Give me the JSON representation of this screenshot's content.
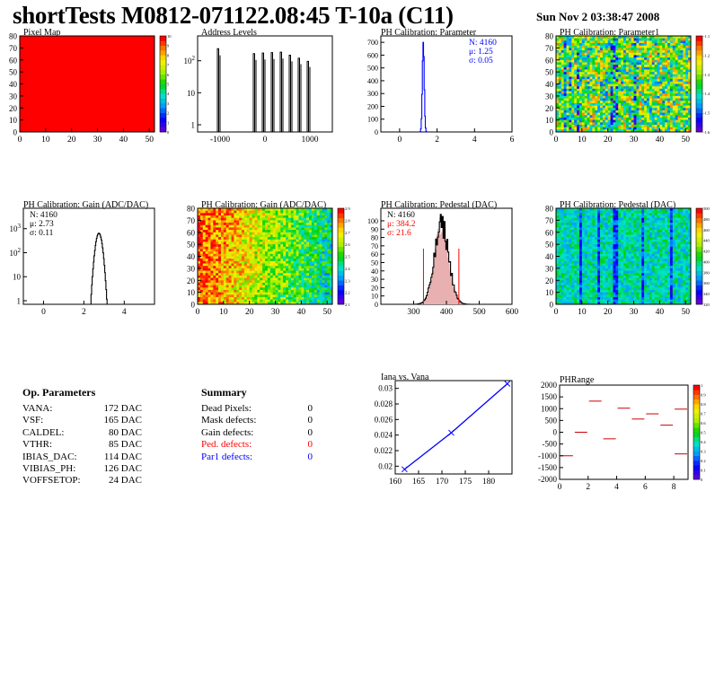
{
  "header": {
    "title": "shortTests M0812-071122.08:45 T-10a (C11)",
    "date": "Sun Nov  2 03:38:47 2008"
  },
  "colors": {
    "frame": "#000000",
    "hist_blue": "#0000ff",
    "hist_red": "#ff0000",
    "ped_fill": "#d08080",
    "axis": "#000000"
  },
  "chart_data": [
    {
      "id": "pixel-map",
      "type": "heatmap",
      "title": "Pixel Map",
      "xlim": [
        0,
        52
      ],
      "ylim": [
        0,
        80
      ],
      "xticks": [
        "0",
        "10",
        "20",
        "30",
        "40",
        "50"
      ],
      "yticks": [
        "0",
        "10",
        "20",
        "30",
        "40",
        "50",
        "60",
        "70",
        "80"
      ],
      "palette": "rainbow",
      "zticks": [
        "0",
        "1",
        "2",
        "3",
        "4",
        "5",
        "6",
        "7",
        "8",
        "9",
        "10"
      ],
      "pattern": "uniform",
      "base": 10,
      "noise": 0,
      "colmod": []
    },
    {
      "id": "address-levels",
      "type": "bar",
      "title": "Address Levels",
      "yscale": "log",
      "xlim": [
        -1500,
        1500
      ],
      "xticks": [
        "-1000",
        "0",
        "1000"
      ],
      "yticks": [
        "1",
        "10",
        "10^2"
      ],
      "spikes": [
        {
          "x": -1000,
          "h": 400
        },
        {
          "x": -200,
          "h": 280
        },
        {
          "x": 0,
          "h": 290
        },
        {
          "x": 200,
          "h": 300
        },
        {
          "x": 400,
          "h": 310
        },
        {
          "x": 600,
          "h": 250
        },
        {
          "x": 800,
          "h": 200
        },
        {
          "x": 1000,
          "h": 160
        }
      ]
    },
    {
      "id": "ph-param",
      "type": "bar",
      "title": "PH Calibration: Parameter",
      "xlim": [
        -1,
        6
      ],
      "ylim": [
        0,
        750
      ],
      "xticks": [
        "0",
        "2",
        "4",
        "6"
      ],
      "yticks": [
        "0",
        "100",
        "200",
        "300",
        "400",
        "500",
        "600",
        "700"
      ],
      "hist": {
        "mean": 1.25,
        "sigma": 0.05,
        "peak": 700,
        "color": "#0000ff"
      },
      "stats": [
        "N: 4160",
        "μ: 1.25",
        "σ: 0.05"
      ],
      "stats_color": "#0000ff"
    },
    {
      "id": "ph-param1",
      "type": "heatmap",
      "title": "PH Calibration: Parameter1",
      "xlim": [
        0,
        52
      ],
      "ylim": [
        0,
        80
      ],
      "xticks": [
        "0",
        "10",
        "20",
        "30",
        "40",
        "50"
      ],
      "yticks": [
        "0",
        "10",
        "20",
        "30",
        "40",
        "50",
        "60",
        "70",
        "80"
      ],
      "palette": "rainbow",
      "zticks": [
        "-1.6",
        "-1.5",
        "-1.4",
        "-1.3",
        "-1.2",
        "-1.1"
      ],
      "pattern": "noise",
      "base": 0.55,
      "noise": 0.35,
      "colmod": [
        3,
        5,
        8,
        21,
        22,
        23,
        30
      ]
    },
    {
      "id": "ph-gain",
      "type": "bar",
      "title": "PH Calibration: Gain (ADC/DAC)",
      "yscale": "log",
      "xlim": [
        -1,
        5.5
      ],
      "xticks": [
        "0",
        "2",
        "4"
      ],
      "yticks": [
        "1",
        "10",
        "10^2",
        "10^3"
      ],
      "hist": {
        "mean": 2.73,
        "sigma": 0.11,
        "peak": 650,
        "color": "#000000"
      },
      "stats": [
        "N: 4160",
        "μ: 2.73",
        "σ: 0.11"
      ],
      "stats_color": "#000000"
    },
    {
      "id": "ph-gain-map",
      "type": "heatmap",
      "title": "PH Calibration: Gain (ADC/DAC)",
      "xlim": [
        0,
        52
      ],
      "ylim": [
        0,
        80
      ],
      "xticks": [
        "0",
        "10",
        "20",
        "30",
        "40",
        "50"
      ],
      "yticks": [
        "0",
        "10",
        "20",
        "30",
        "40",
        "50",
        "60",
        "70",
        "80"
      ],
      "palette": "rainbow",
      "zticks": [
        "2.1",
        "2.2",
        "2.3",
        "2.4",
        "2.5",
        "2.6",
        "2.7",
        "2.8",
        "2.9"
      ],
      "pattern": "gradient",
      "base": 0.8,
      "noise": 0.18,
      "colmod": []
    },
    {
      "id": "ph-ped",
      "type": "bar",
      "title": "PH Calibration: Pedestal (DAC)",
      "xlim": [
        200,
        600
      ],
      "ylim": [
        0,
        115
      ],
      "xticks": [
        "300",
        "400",
        "500",
        "600"
      ],
      "yticks": [
        "0",
        "10",
        "20",
        "30",
        "40",
        "50",
        "60",
        "70",
        "80",
        "90",
        "100"
      ],
      "hist": {
        "mean": 384.2,
        "sigma": 21.6,
        "peak": 95,
        "color": "#000000"
      },
      "cut_lines": [
        330,
        438
      ],
      "stats": [
        "N: 4160",
        "μ: 384.2",
        "σ: 21.6"
      ],
      "stats_color": "#ff0000"
    },
    {
      "id": "ph-ped-map",
      "type": "heatmap",
      "title": "PH Calibration: Pedestal (DAC)",
      "xlim": [
        0,
        52
      ],
      "ylim": [
        0,
        80
      ],
      "xticks": [
        "0",
        "10",
        "20",
        "30",
        "40",
        "50"
      ],
      "yticks": [
        "0",
        "10",
        "20",
        "30",
        "40",
        "50",
        "60",
        "70",
        "80"
      ],
      "palette": "rainbow",
      "zticks": [
        "320",
        "340",
        "360",
        "380",
        "400",
        "420",
        "440",
        "460",
        "480",
        "500"
      ],
      "pattern": "noise",
      "base": 0.38,
      "noise": 0.12,
      "colmod": [
        9,
        16,
        22,
        23,
        33,
        44
      ]
    },
    {
      "id": "iana-vana",
      "type": "line",
      "title": "Iana vs. Vana",
      "xlim": [
        160,
        185
      ],
      "ylim": [
        0.019,
        0.031
      ],
      "xticks": [
        "160",
        "165",
        "170",
        "175",
        "180"
      ],
      "yticks": [
        "0.02",
        "0.022",
        "0.024",
        "0.026",
        "0.028",
        "0.03"
      ],
      "x": [
        162,
        172,
        184
      ],
      "y": [
        0.0196,
        0.0243,
        0.0306
      ],
      "color": "#0000ff"
    },
    {
      "id": "ph-range",
      "type": "heatmap",
      "title": "PHRange",
      "xlim": [
        0,
        9
      ],
      "ylim": [
        -2000,
        2000
      ],
      "xticks": [
        "0",
        "2",
        "4",
        "6",
        "8"
      ],
      "yticks": [
        "-2000",
        "-1500",
        "-1000",
        "-500",
        "0",
        "500",
        "1000",
        "1500",
        "2000"
      ],
      "zticks": [
        "0",
        "0.1",
        "0.2",
        "0.3",
        "0.4",
        "0.5",
        "0.6",
        "0.7",
        "0.8",
        "0.9",
        "1"
      ],
      "segments": [
        {
          "x0": 0,
          "x1": 1,
          "y": -1000
        },
        {
          "x0": 1,
          "x1": 2,
          "y": 0
        },
        {
          "x0": 2,
          "x1": 3,
          "y": 1320
        },
        {
          "x0": 3,
          "x1": 4,
          "y": -280
        },
        {
          "x0": 4,
          "x1": 5,
          "y": 1020
        },
        {
          "x0": 5,
          "x1": 6,
          "y": 560
        },
        {
          "x0": 6,
          "x1": 7,
          "y": 780
        },
        {
          "x0": 7,
          "x1": 8,
          "y": 300
        },
        {
          "x0": 8,
          "x1": 9,
          "y": 980
        },
        {
          "x0": 8,
          "x1": 9,
          "y": -920
        }
      ]
    }
  ],
  "op_params": {
    "title": "Op. Parameters",
    "rows": [
      {
        "k": "VANA:",
        "v": "172 DAC"
      },
      {
        "k": "VSF:",
        "v": "165 DAC"
      },
      {
        "k": "CALDEL:",
        "v": "80 DAC"
      },
      {
        "k": "VTHR:",
        "v": "85 DAC"
      },
      {
        "k": "IBIAS_DAC:",
        "v": "114 DAC"
      },
      {
        "k": "VIBIAS_PH:",
        "v": "126 DAC"
      },
      {
        "k": "VOFFSETOP:",
        "v": "24 DAC"
      }
    ]
  },
  "summary": {
    "title": "Summary",
    "rows": [
      {
        "k": "Dead Pixels:",
        "v": "0",
        "color": "#000000"
      },
      {
        "k": "Mask defects:",
        "v": "0",
        "color": "#000000"
      },
      {
        "k": "Gain defects:",
        "v": "0",
        "color": "#000000"
      },
      {
        "k": "Ped. defects:",
        "v": "0",
        "color": "#ff0000"
      },
      {
        "k": "Par1 defects:",
        "v": "0",
        "color": "#0000ff"
      }
    ]
  }
}
